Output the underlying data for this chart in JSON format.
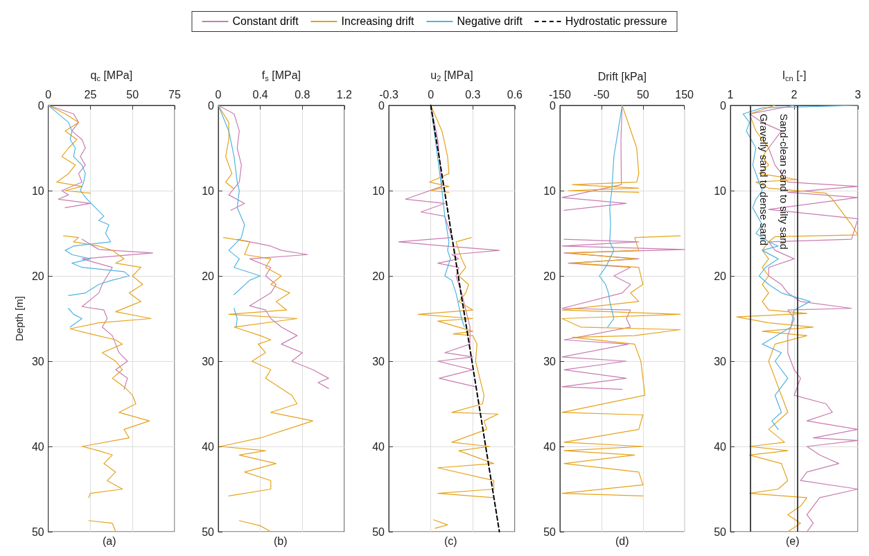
{
  "chart_data": [
    {
      "type": "line",
      "xlabel": "q$_{c}$ [MPa]",
      "ylabel": "Depth [m]",
      "xlim": [
        0,
        75
      ],
      "xticks": [
        0,
        25,
        50,
        75
      ],
      "ylim": [
        50,
        0
      ],
      "yticks": [
        0,
        10,
        20,
        30,
        40,
        50
      ],
      "grid": true,
      "legend": "top",
      "marker": "none",
      "annotations": [
        "(a)"
      ],
      "series": [
        {
          "name": "Constant drift",
          "color": "#c97bb0",
          "x": [
            0,
            15,
            18,
            14,
            20,
            22,
            19,
            22,
            18,
            20,
            8,
            12,
            6,
            25,
            10,
            null,
            20,
            30,
            62,
            20,
            38,
            35,
            32,
            30,
            20,
            33,
            35,
            32,
            38,
            40,
            42,
            47,
            40,
            47,
            45
          ],
          "values": [
            0,
            1,
            2,
            3,
            4,
            5,
            6,
            7,
            8,
            9,
            10,
            10.5,
            11,
            11.5,
            12,
            null,
            15.7,
            16.9,
            17.3,
            18,
            19,
            20,
            21,
            22,
            23.6,
            24,
            25,
            26,
            27,
            28,
            29,
            30,
            31,
            32,
            33.3
          ]
        },
        {
          "name": "Increasing drift",
          "color": "#e6a21a",
          "x": [
            0,
            10,
            18,
            10,
            17,
            12,
            8,
            16,
            12,
            5,
            20,
            10,
            25,
            null,
            9,
            18,
            15,
            30,
            38,
            45,
            40,
            55,
            50,
            56,
            48,
            55,
            40,
            61,
            30,
            13,
            25,
            40,
            44,
            32,
            40,
            44,
            38,
            45,
            50,
            52,
            42,
            60,
            45,
            48,
            20,
            30,
            38,
            33,
            40,
            35,
            44,
            25,
            24,
            null,
            24,
            38,
            40
          ],
          "values": [
            0,
            1,
            2,
            3,
            4,
            5,
            6,
            7,
            8,
            9,
            9.5,
            10,
            10.3,
            null,
            15.3,
            15.5,
            16,
            16.5,
            17,
            18,
            18.5,
            19,
            20,
            21,
            22,
            23,
            24.2,
            25,
            25.5,
            26.2,
            26.8,
            27.5,
            28,
            29,
            30,
            31,
            32,
            33,
            34,
            35,
            36,
            37,
            38,
            39,
            40,
            40.5,
            41,
            42,
            43,
            44,
            45,
            45.5,
            46,
            null,
            48.7,
            49,
            50
          ]
        },
        {
          "name": "Negative drift",
          "color": "#4db3e3",
          "x": [
            0,
            3,
            12,
            14,
            13,
            16,
            15,
            20,
            22,
            21,
            19,
            23,
            28,
            33,
            30,
            36,
            34,
            37,
            15,
            10,
            14,
            25,
            14,
            20,
            45,
            48,
            38,
            30,
            22,
            12,
            null,
            12,
            15,
            20,
            13
          ],
          "values": [
            0,
            0.5,
            2,
            3,
            4,
            5,
            6,
            7,
            8,
            9,
            10,
            11,
            12,
            13,
            13.5,
            14,
            15,
            16,
            16.5,
            17,
            17.5,
            18,
            18.5,
            19,
            19.5,
            20,
            20.5,
            21,
            22,
            22.3,
            null,
            23.8,
            24.5,
            25,
            26
          ]
        }
      ]
    },
    {
      "type": "line",
      "xlabel": "f$_{s}$ [MPa]",
      "xlim": [
        0,
        1.2
      ],
      "xticks": [
        0,
        0.4,
        0.8,
        1.2
      ],
      "ylim": [
        50,
        0
      ],
      "yticks": [
        0,
        10,
        20,
        30,
        40,
        50
      ],
      "grid": true,
      "legend": "top",
      "marker": "none",
      "annotations": [
        "(b)"
      ],
      "series": [
        {
          "name": "Constant drift",
          "color": "#c97bb0",
          "x": [
            0,
            0.15,
            0.2,
            0.18,
            0.22,
            0.2,
            0.1,
            0.25,
            0.12,
            null,
            0.18,
            0.5,
            0.6,
            0.85,
            0.3,
            0.5,
            0.45,
            0.55,
            0.5,
            0.3,
            0.45,
            0.5,
            0.6,
            0.75,
            0.6,
            0.8,
            0.7,
            0.9,
            1.05,
            0.95,
            1.05
          ],
          "values": [
            0,
            1,
            3,
            5,
            7,
            9,
            10.5,
            11.5,
            12.3,
            null,
            15.7,
            16.5,
            17,
            17.5,
            18,
            19,
            20,
            21,
            22,
            23.5,
            24,
            25,
            26,
            27,
            28,
            29,
            30,
            31,
            32,
            32.5,
            33.2
          ]
        },
        {
          "name": "Increasing drift",
          "color": "#e6a21a",
          "x": [
            0,
            0.1,
            0.1,
            0.07,
            0.13,
            0.07,
            0.15,
            null,
            0.05,
            0.3,
            0.25,
            0.5,
            0.45,
            0.6,
            0.5,
            0.68,
            0.55,
            0.65,
            0.1,
            0.75,
            0.15,
            0.4,
            0.5,
            0.38,
            0.45,
            0.32,
            0.5,
            0.45,
            0.7,
            0.75,
            0.5,
            0.9,
            0.65,
            0.4,
            0.02,
            0.45,
            0.2,
            0.55,
            0.25,
            0.5,
            0.5,
            0.1,
            null,
            0.2,
            0.4,
            0.5
          ],
          "values": [
            0,
            2,
            4,
            6,
            8,
            9,
            9.8,
            null,
            15.5,
            16,
            17.5,
            18,
            19,
            20,
            21,
            22,
            23,
            24,
            24.5,
            25,
            26,
            27,
            27.5,
            28,
            29,
            30,
            31,
            32,
            34,
            35,
            36,
            37,
            38,
            39,
            40,
            40.5,
            41,
            42,
            43,
            44,
            45,
            45.8,
            null,
            48.7,
            49.3,
            50
          ]
        },
        {
          "name": "Negative drift",
          "color": "#4db3e3",
          "x": [
            0,
            0.1,
            0.15,
            0.18,
            0.2,
            0.18,
            0.25,
            0.22,
            0.1,
            0.2,
            0.15,
            0.4,
            0.3,
            0.15,
            null,
            0.15,
            0.18,
            0.17
          ],
          "values": [
            0,
            3,
            6,
            9,
            10,
            12,
            14,
            15.5,
            17,
            18,
            19,
            20,
            20.5,
            22.2,
            null,
            23.8,
            25,
            26
          ]
        }
      ]
    },
    {
      "type": "line",
      "xlabel": "u$_{2}$ [MPa]",
      "xlim": [
        -0.3,
        0.6
      ],
      "xticks": [
        -0.3,
        0,
        0.3,
        0.6
      ],
      "ylim": [
        50,
        0
      ],
      "yticks": [
        0,
        10,
        20,
        30,
        40,
        50
      ],
      "grid": true,
      "legend": "top",
      "marker": "none",
      "annotations": [
        "(c)"
      ],
      "series": [
        {
          "name": "Constant drift",
          "color": "#c97bb0",
          "x": [
            0,
            0.05,
            0.08,
            -0.18,
            0.1,
            -0.07,
            0.1,
            0.15,
            -0.23,
            0.1,
            0.49,
            0.15,
            0.2,
            0.05,
            0.2,
            0.18,
            0.22,
            0.25,
            0.28,
            0.28,
            0.1,
            0.3,
            0.05,
            0.3,
            0.06,
            0.32
          ],
          "values": [
            0,
            4,
            9.5,
            11,
            11.5,
            12.5,
            13,
            15.5,
            16,
            16.5,
            17,
            17.5,
            18,
            18.5,
            19,
            20,
            22,
            24,
            26,
            28,
            29,
            29.5,
            30,
            31,
            32,
            33
          ]
        },
        {
          "name": "Increasing drift",
          "color": "#e6a21a",
          "x": [
            0,
            0.08,
            0.12,
            0.13,
            -0.01,
            0.13,
            0,
            0.13,
            null,
            0.29,
            0.18,
            0.2,
            0.22,
            0.25,
            0.2,
            0.27,
            0.25,
            0.2,
            0.3,
            -0.09,
            0.3,
            0.05,
            0.3,
            0.16,
            0.3,
            0.33,
            0.32,
            0.35,
            0.38,
            0.37,
            0.15,
            0.48,
            0.38,
            0.4,
            0.15,
            0.42,
            0.2,
            0.45,
            0.05,
            0.45,
            0.45,
            0.05,
            0.45,
            null,
            0.02,
            0.12,
            0.03
          ],
          "values": [
            0,
            3,
            6,
            8,
            9,
            9.5,
            10,
            10.2,
            null,
            15.5,
            16,
            17,
            18,
            19,
            20,
            21,
            22,
            23,
            24,
            24.5,
            25,
            25.3,
            26.5,
            26.8,
            27,
            28,
            30,
            32,
            34,
            35,
            36,
            36.2,
            37,
            38,
            39.5,
            40,
            40.5,
            42,
            42.5,
            44,
            45,
            45.5,
            46,
            null,
            48.6,
            49.2,
            49.6
          ]
        },
        {
          "name": "Negative drift",
          "color": "#4db3e3",
          "x": [
            0,
            0.04,
            0.08,
            0.1,
            0.13,
            0.12,
            0.14,
            0.1,
            0.15,
            0.18,
            0.2,
            0.22,
            0.24
          ],
          "values": [
            0,
            5,
            10,
            13,
            16,
            17,
            18,
            20,
            20.5,
            22,
            23.5,
            25,
            26
          ]
        },
        {
          "name": "Hydrostatic pressure",
          "color": "#000000",
          "line_style": "dashed",
          "x": [
            0,
            0.49
          ],
          "values": [
            0,
            50
          ]
        }
      ]
    },
    {
      "type": "line",
      "xlabel": "Drift [kPa]",
      "xlim": [
        -150,
        150
      ],
      "xticks": [
        -150,
        -50,
        50,
        150
      ],
      "ylim": [
        50,
        0
      ],
      "yticks": [
        0,
        10,
        20,
        30,
        40,
        50
      ],
      "grid": true,
      "legend": "top",
      "marker": "none",
      "annotations": [
        "(d)"
      ],
      "series": [
        {
          "name": "Constant drift",
          "color": "#c97bb0",
          "x": [
            0,
            -3,
            -2,
            -145,
            10,
            -140,
            null,
            -140,
            40,
            -145,
            150,
            -140,
            40,
            -130,
            20,
            -20,
            20,
            0,
            -145,
            20,
            10,
            20,
            -140,
            15,
            -145,
            10,
            -140,
            10,
            -145,
            0
          ],
          "values": [
            0,
            4,
            9.3,
            10.8,
            11.5,
            12.3,
            null,
            15.7,
            16,
            16.5,
            16.9,
            17.3,
            18,
            18.5,
            19,
            20,
            21,
            22,
            23.8,
            24,
            25,
            26,
            27.5,
            28,
            29.5,
            30,
            31,
            32,
            33,
            33.3
          ]
        },
        {
          "name": "Increasing drift",
          "color": "#e6a21a",
          "x": [
            0,
            35,
            40,
            35,
            -120,
            40,
            -130,
            40,
            null,
            140,
            30,
            40,
            -130,
            30,
            -120,
            40,
            50,
            20,
            40,
            -145,
            140,
            -145,
            -100,
            140,
            30,
            -120,
            30,
            45,
            50,
            55,
            -145,
            50,
            40,
            -140,
            50,
            -140,
            30,
            -140,
            40,
            50,
            -145,
            50
          ],
          "values": [
            0,
            5,
            8,
            9,
            9.3,
            9.7,
            10,
            10.2,
            null,
            15.3,
            15.5,
            17,
            17.3,
            18,
            18.5,
            19,
            21,
            22,
            23,
            24,
            24.5,
            25,
            26,
            26.3,
            27,
            27.2,
            28,
            30,
            32,
            34,
            36,
            36.3,
            38,
            39.5,
            40,
            40.5,
            41,
            42,
            43,
            44.5,
            45.5,
            45.8
          ]
        },
        {
          "name": "Negative drift",
          "color": "#4db3e3",
          "x": [
            0,
            -10,
            -20,
            -25,
            -30,
            -28,
            -30,
            -20,
            -30,
            -40,
            -55,
            -40,
            -33,
            -30,
            -20,
            -35
          ],
          "values": [
            0,
            3,
            6,
            10,
            12,
            14,
            16,
            17,
            18,
            19,
            20,
            21,
            22,
            23,
            25,
            26
          ]
        }
      ]
    },
    {
      "type": "line",
      "xlabel": "I$_{cn}$ [-]",
      "xlim": [
        1,
        3
      ],
      "xticks": [
        1,
        2,
        3
      ],
      "ylim": [
        50,
        0
      ],
      "yticks": [
        0,
        10,
        20,
        30,
        40,
        50
      ],
      "grid": true,
      "legend": "top",
      "marker": "none",
      "annotations": [
        "(e)"
      ],
      "ref_lines": [
        {
          "axis": "x",
          "value": 1.31,
          "label": "Gravelly sand to dense sand",
          "color": "#333333"
        },
        {
          "axis": "x",
          "value": 2.05,
          "label": "Sand-clean sand to silty sand",
          "color": "#333333"
        }
      ],
      "series": [
        {
          "name": "Constant drift",
          "color": "#c97bb0",
          "x": [
            2.0,
            1.3,
            1.5,
            1.8,
            1.6,
            1.7,
            1.8,
            1.9,
            3,
            1.9,
            3,
            1.6,
            3,
            2.9,
            1.6,
            1.7,
            2.0,
            1.6,
            1.6,
            1.8,
            1.9,
            2.1,
            2.9,
            1.9,
            2.0,
            1.9,
            1.9,
            2.0,
            2.1,
            2.0,
            2.5,
            2.6,
            2.2,
            3,
            2.3,
            3,
            2.2,
            2.4,
            2.7,
            2.2,
            2.1,
            3,
            2.4,
            2.3,
            2.2,
            2.3,
            2.2
          ],
          "values": [
            0,
            1,
            2,
            3,
            5,
            7,
            8,
            9,
            9.5,
            10.2,
            10.8,
            12.2,
            13.3,
            15.7,
            16,
            17,
            18,
            19,
            20,
            21,
            22,
            23,
            23.8,
            24,
            25,
            27,
            29,
            31,
            32,
            34,
            35,
            36,
            37,
            38,
            39,
            39.3,
            40,
            41,
            42,
            43,
            44,
            45,
            46,
            47,
            48,
            49,
            50
          ]
        },
        {
          "name": "Increasing drift",
          "color": "#e6a21a",
          "x": [
            1.7,
            1.3,
            1.4,
            1.6,
            1.5,
            1.6,
            1.45,
            2.05,
            1.4,
            1.6,
            2.5,
            2.6,
            2.7,
            2.8,
            2.9,
            3,
            1.7,
            1.6,
            1.5,
            1.6,
            1.5,
            1.6,
            1.5,
            1.6,
            1.5,
            1.6,
            2.2,
            1.1,
            1.6,
            2.3,
            1.5,
            2.2,
            1.7,
            1.6,
            1.7,
            1.8,
            1.9,
            1.6,
            1.85,
            1.3,
            1.9,
            1.3,
            1.8,
            1.9,
            1.75,
            1.3,
            2.2,
            2.1,
            1.9,
            2.1,
            1.9
          ],
          "values": [
            0,
            1,
            3,
            5,
            6,
            7,
            8,
            8.7,
            9,
            9.7,
            10.3,
            11,
            12,
            13,
            14,
            15.2,
            15.4,
            16,
            17,
            18,
            19,
            20,
            21,
            22,
            23,
            24,
            24.4,
            24.8,
            25.5,
            26,
            26.5,
            27,
            28,
            30,
            32,
            34,
            36,
            38,
            39.5,
            40,
            40.5,
            41,
            42,
            44,
            45,
            45.5,
            46,
            47,
            48,
            49,
            50
          ]
        },
        {
          "name": "Negative drift",
          "color": "#4db3e3",
          "x": [
            3,
            1.5,
            1.2,
            1.3,
            1.25,
            1.4,
            1.35,
            1.45,
            1.5,
            1.4,
            1.35,
            1.5,
            1.4,
            1.6,
            1.75,
            1.5,
            1.75,
            1.55,
            1.45,
            1.6,
            1.8,
            2.25,
            2.0,
            1.95,
            1.5,
            1.8,
            1.7,
            1.9,
            1.7,
            1.8,
            1.65,
            1.75
          ],
          "values": [
            0,
            0.3,
            1,
            2,
            3,
            5,
            7,
            9,
            10,
            11,
            12,
            14,
            15,
            16,
            16.5,
            17,
            18,
            19,
            20,
            21,
            22,
            23,
            24,
            26,
            28,
            29,
            30,
            32,
            34,
            36,
            37,
            38
          ]
        }
      ]
    }
  ]
}
